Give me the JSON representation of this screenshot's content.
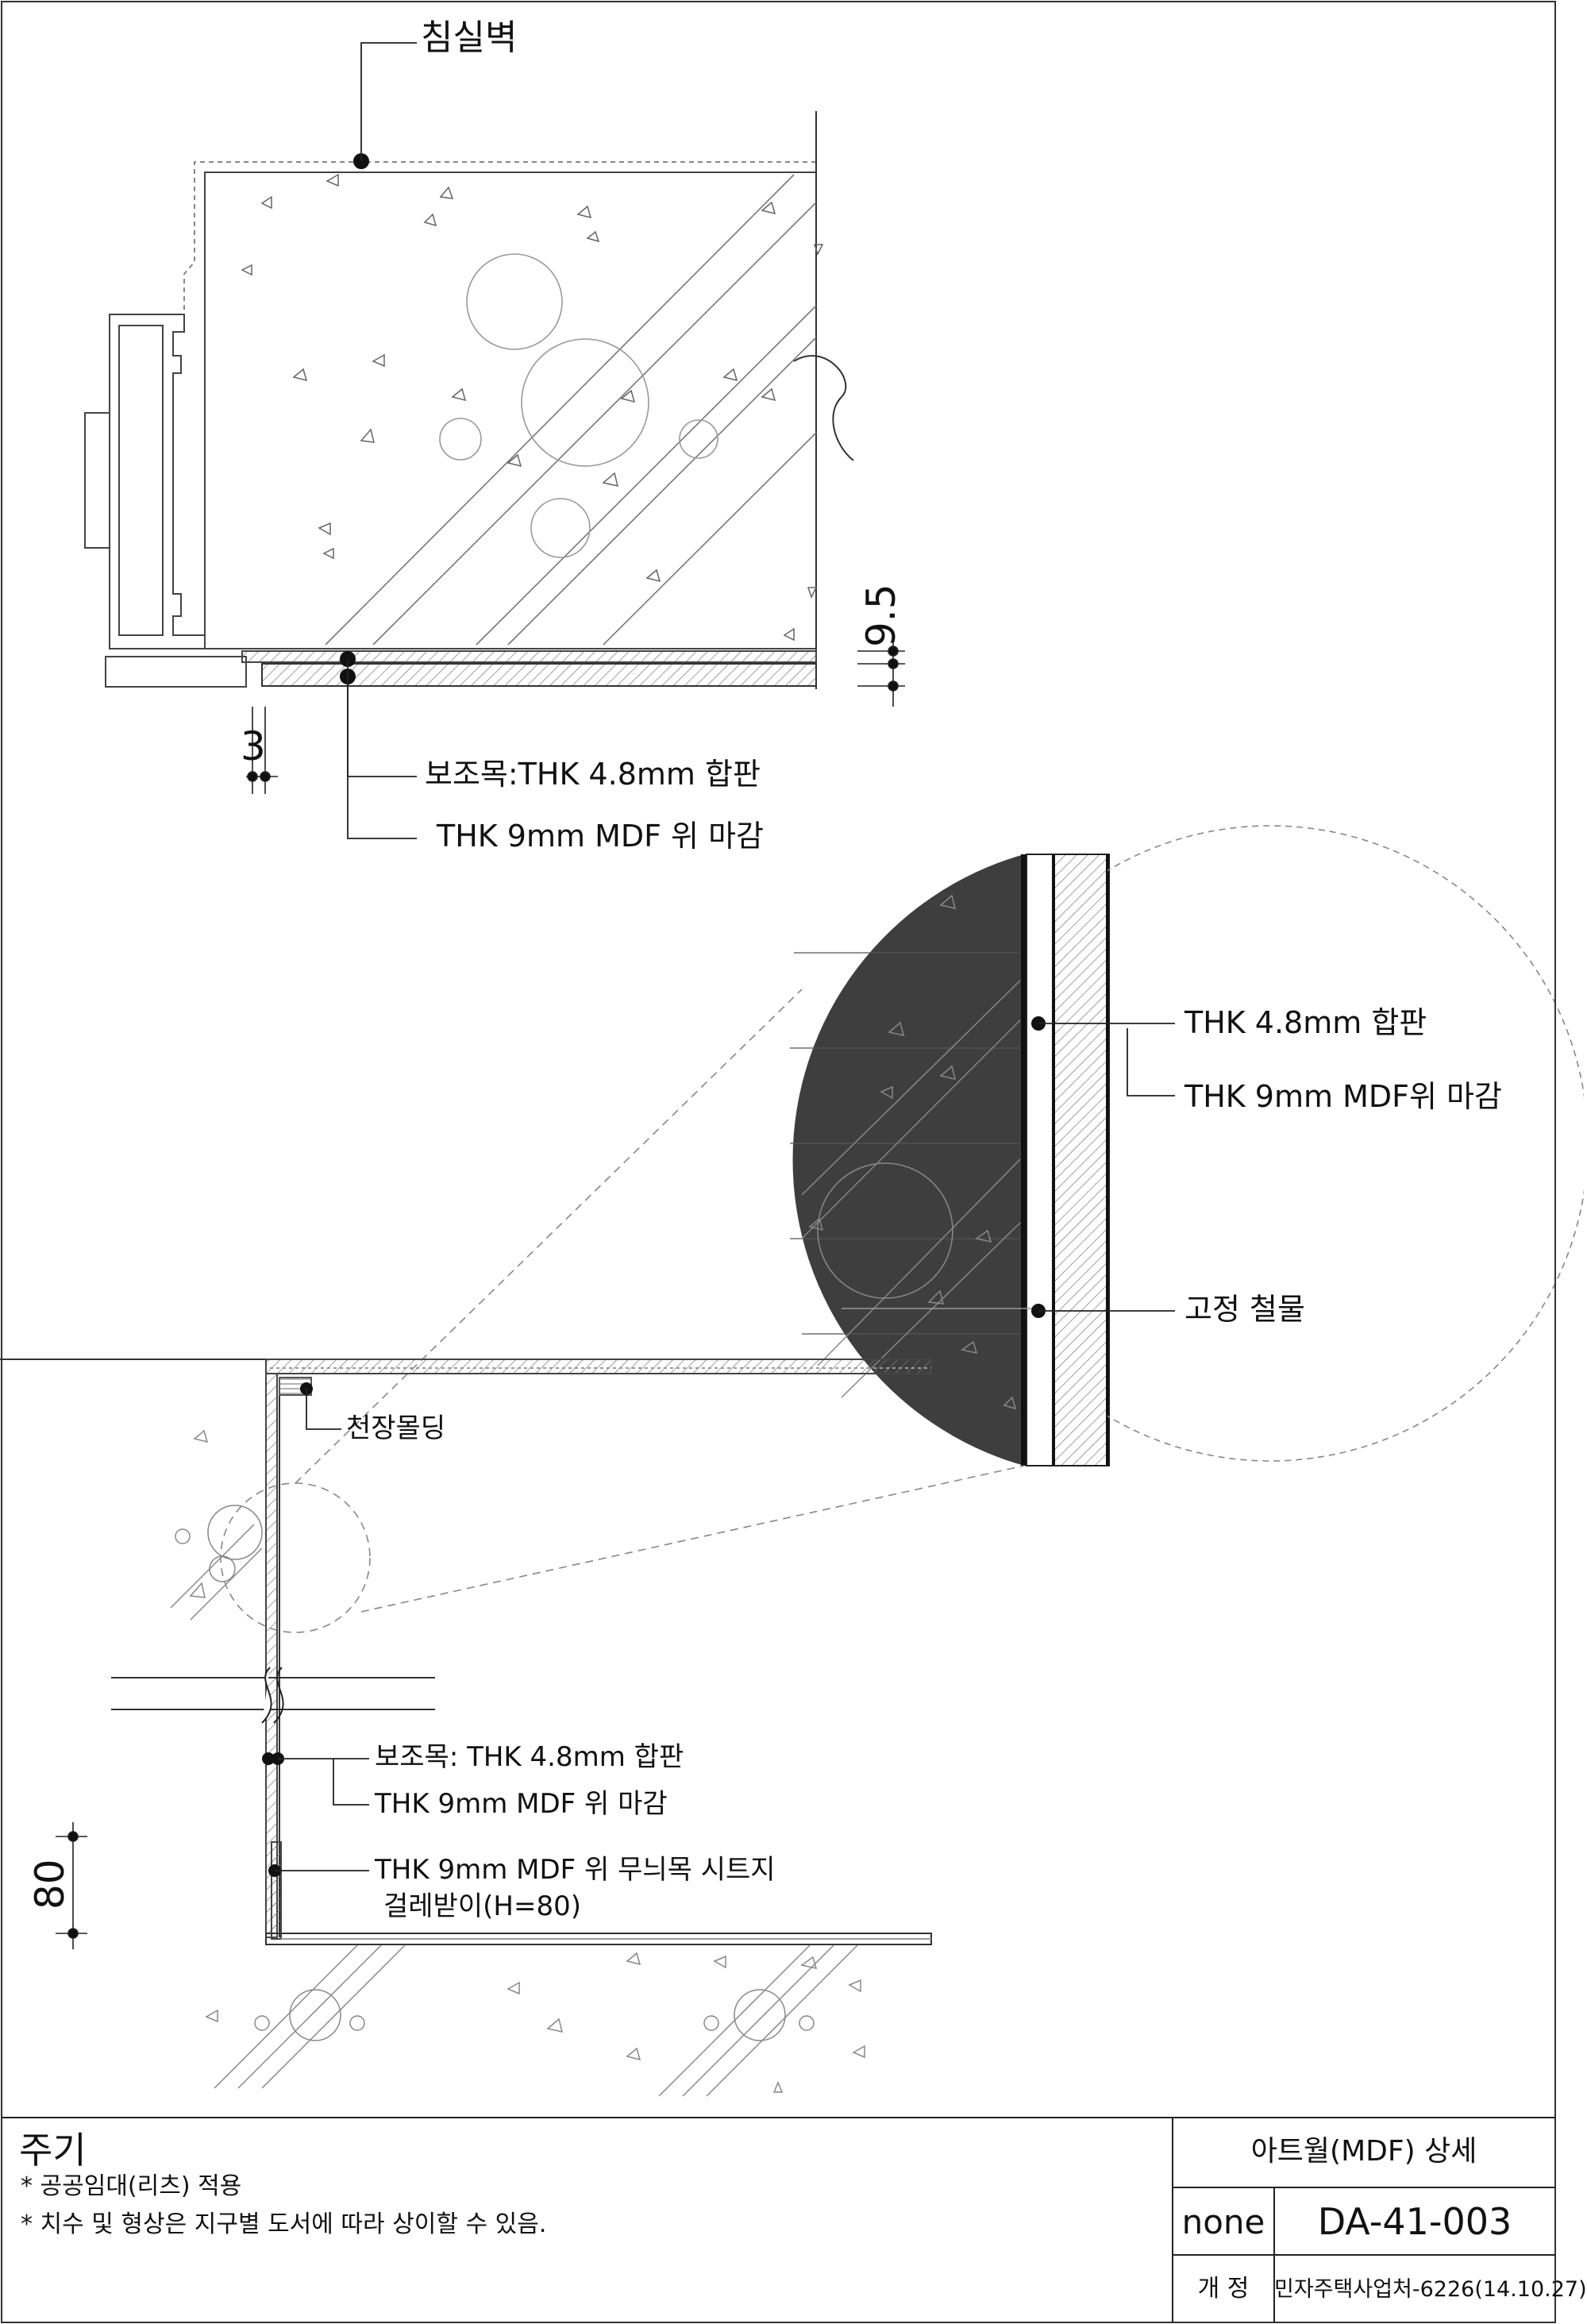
{
  "callouts": {
    "bedroom_wall": "침실벽",
    "top_sub_batten": "보조목:THK 4.8mm 합판",
    "top_mdf_finish": "THK 9mm MDF 위 마감",
    "detail_plywood": "THK 4.8mm 합판",
    "detail_mdf_finish": "THK 9mm MDF위 마감",
    "detail_hardware": "고정 철물",
    "ceiling_molding": "천장몰딩",
    "bottom_sub_batten": "보조목: THK 4.8mm 합판",
    "bottom_mdf_finish": "THK 9mm MDF 위 마감",
    "baseboard_line1": "THK 9mm MDF 위 무늬목 시트지",
    "baseboard_line2": "걸레받이(H=80)"
  },
  "dimensions": {
    "top_left": "3",
    "top_right": "9.5",
    "bottom_left": "80"
  },
  "notes": {
    "title": "주기",
    "items": [
      "* 공공임대(리츠) 적용",
      "* 치수 및 형상은 지구별 도서에 따라 상이할 수 있음."
    ]
  },
  "title_block": {
    "title": "아트월(MDF) 상세",
    "scale": "none",
    "drawing_no": "DA-41-003",
    "revision_label": "개 정",
    "revision_value": "민자주택사업처-6226(14.10.27)"
  }
}
